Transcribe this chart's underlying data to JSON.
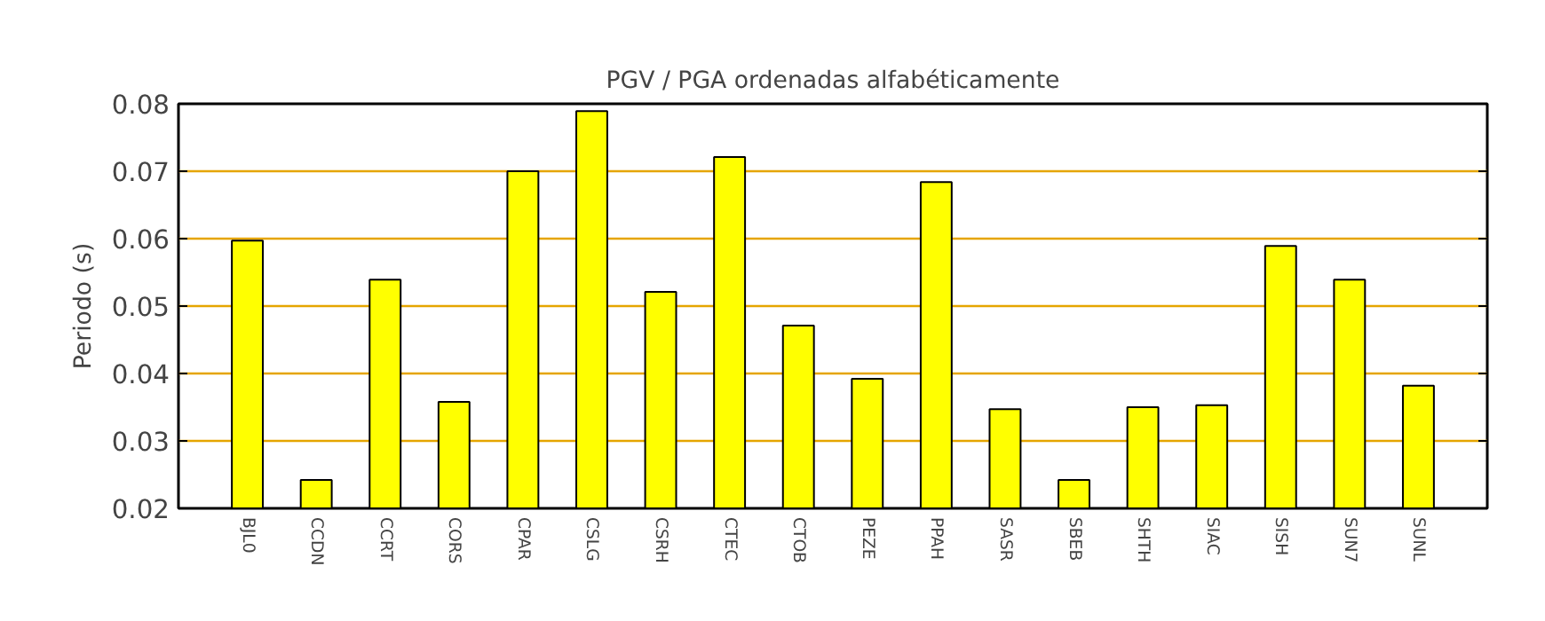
{
  "chart_data": {
    "type": "bar",
    "title": "PGV / PGA ordenadas alfabéticamente",
    "ylabel": "Periodo (s)",
    "categories": [
      "BJL0",
      "CCDN",
      "CCRT",
      "CORS",
      "CPAR",
      "CSLG",
      "CSRH",
      "CTEC",
      "CTOB",
      "PEZE",
      "PPAH",
      "SASR",
      "SBEB",
      "SHTH",
      "SIAC",
      "SISH",
      "SUN7",
      "SUNL"
    ],
    "values": [
      0.0597,
      0.0242,
      0.0539,
      0.0358,
      0.07,
      0.0789,
      0.0521,
      0.0721,
      0.0471,
      0.0392,
      0.0684,
      0.0347,
      0.0242,
      0.035,
      0.0353,
      0.0589,
      0.0539,
      0.0382
    ],
    "color": "#ffff00",
    "ylim": [
      0.02,
      0.08
    ],
    "yticks": [
      0.02,
      0.03,
      0.04,
      0.05,
      0.06,
      0.07,
      0.08
    ],
    "grid": "y"
  }
}
